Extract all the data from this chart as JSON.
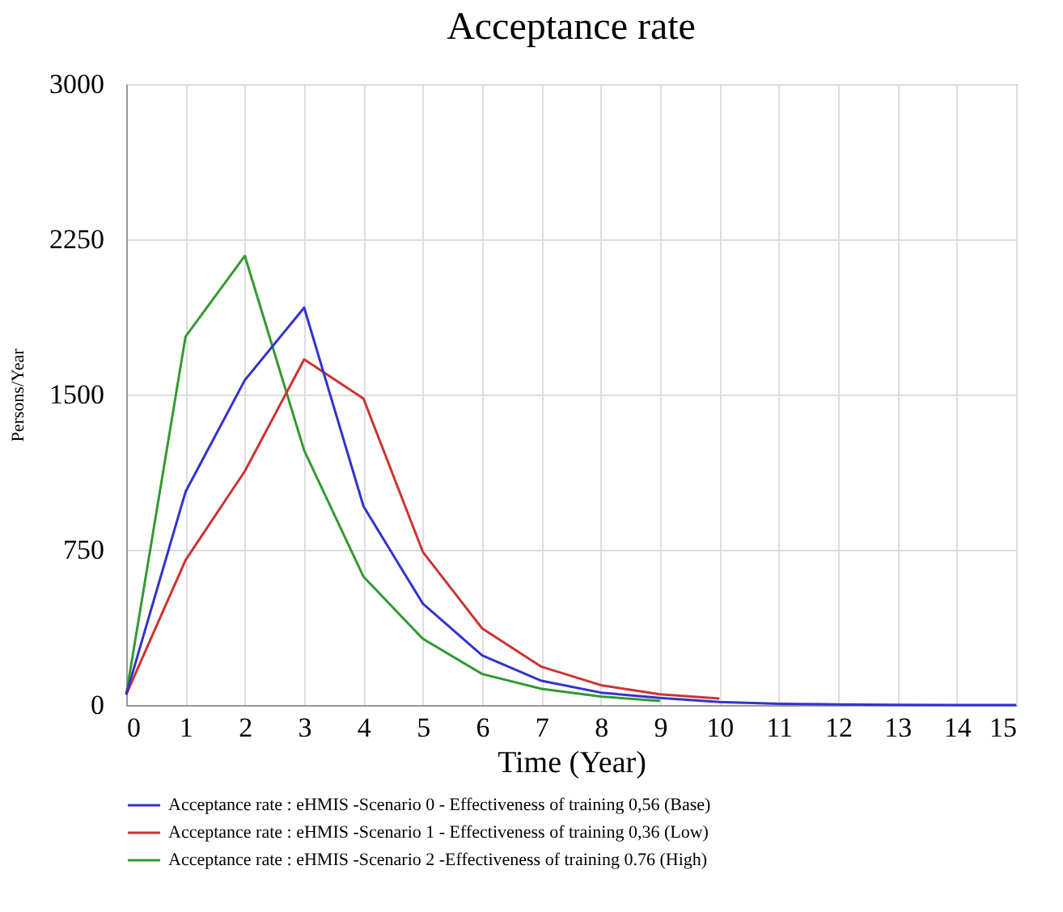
{
  "chart_data": {
    "type": "line",
    "title": "Acceptance rate",
    "xlabel": "Time (Year)",
    "ylabel": "Persons/Year",
    "x": [
      0,
      1,
      2,
      3,
      4,
      5,
      6,
      7,
      8,
      9,
      10,
      11,
      12,
      13,
      14,
      15
    ],
    "series": [
      {
        "name": "Acceptance rate : eHMIS -Scenario 0 - Effectiveness of training  0,56 (Base)",
        "color": "#3333cc",
        "values": [
          50,
          1030,
          1570,
          1920,
          960,
          490,
          240,
          117,
          60,
          34,
          15,
          6,
          3,
          1,
          0,
          0
        ]
      },
      {
        "name": "Acceptance rate : eHMIS -Scenario 1 - Effectiveness of training  0,36 (Low)",
        "color": "#cc3333",
        "values": [
          50,
          700,
          1130,
          1670,
          1480,
          740,
          370,
          185,
          96,
          52,
          31,
          null,
          null,
          null,
          null,
          null
        ]
      },
      {
        "name": "Acceptance rate : eHMIS -Scenario 2 -Effectiveness of training 0.76 (High)",
        "color": "#339933",
        "values": [
          50,
          1780,
          2170,
          1230,
          620,
          320,
          150,
          78,
          41,
          20,
          null,
          null,
          null,
          null,
          null,
          null
        ]
      }
    ],
    "xlim": [
      0,
      15
    ],
    "xticks": [
      0,
      1,
      2,
      3,
      4,
      5,
      6,
      7,
      8,
      9,
      10,
      11,
      12,
      13,
      14,
      15
    ],
    "ylim": [
      0,
      3000
    ],
    "yticks": [
      0,
      750,
      1500,
      2250,
      3000
    ],
    "grid": true,
    "legend": "bottom",
    "marker": "none",
    "line_style": "solid"
  }
}
